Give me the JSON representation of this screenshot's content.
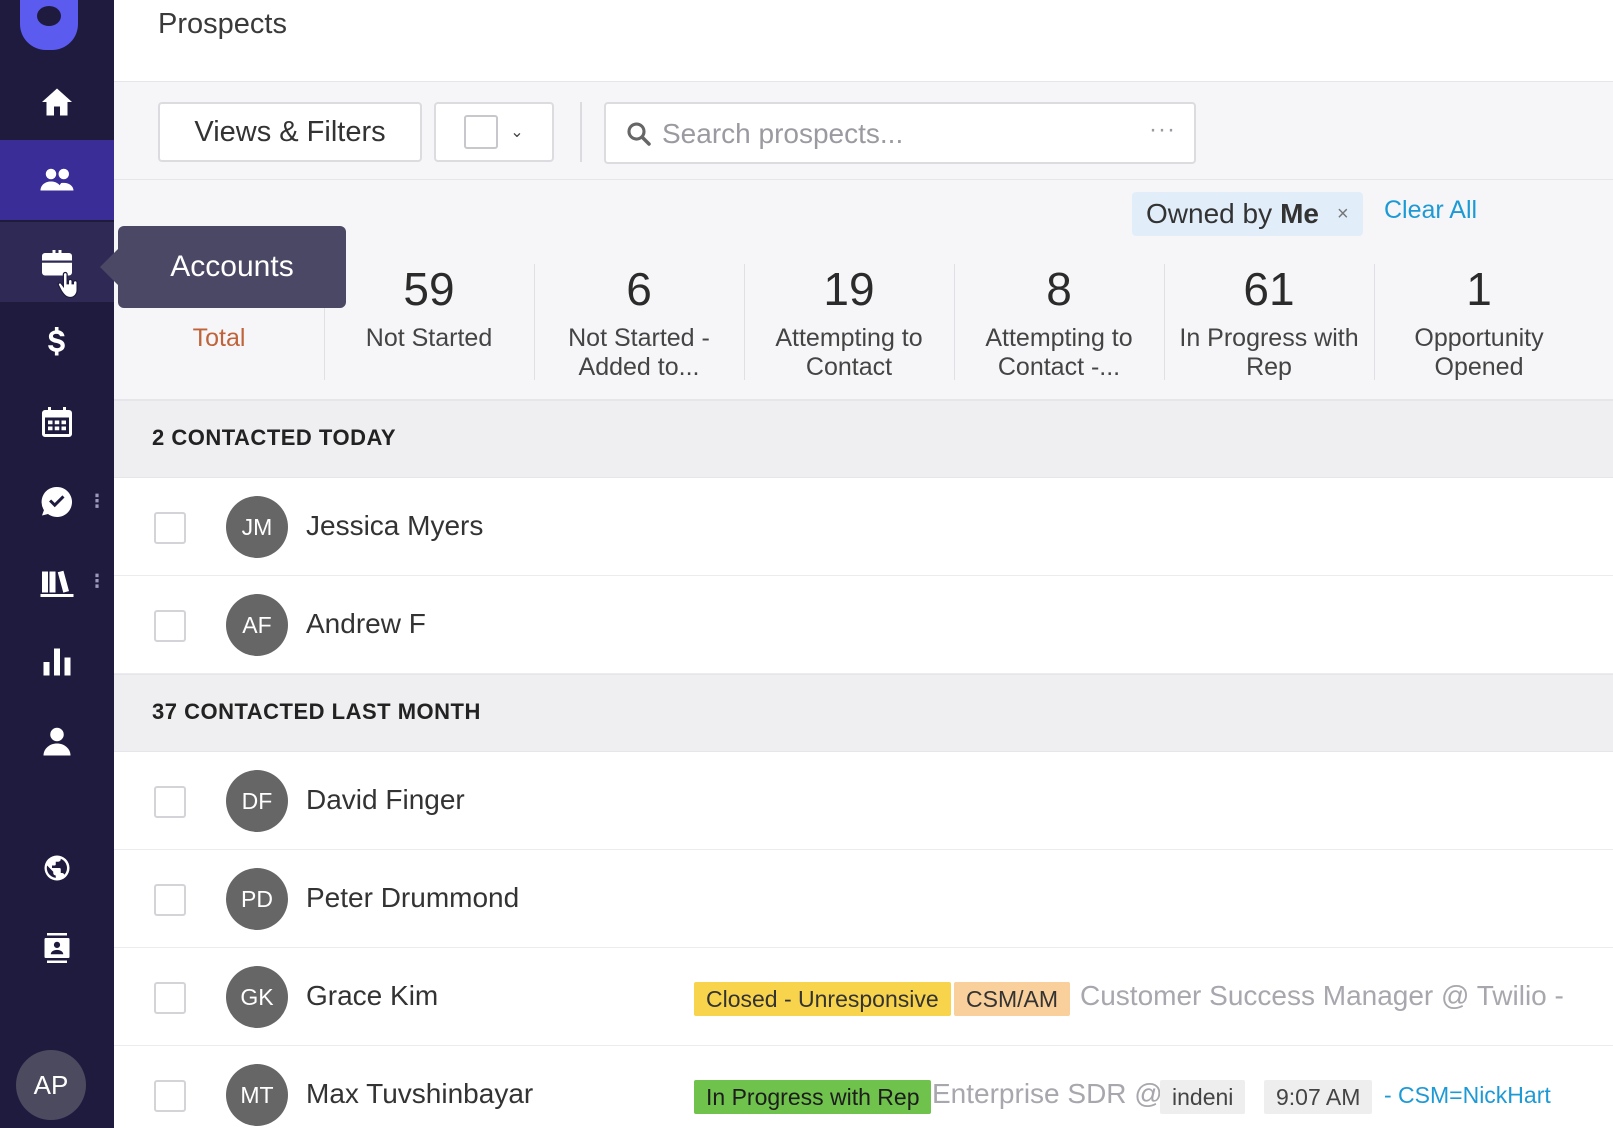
{
  "sidebar": {
    "items": [
      {
        "name": "home",
        "icon": "home-icon"
      },
      {
        "name": "prospects",
        "icon": "people-icon"
      },
      {
        "name": "accounts",
        "icon": "briefcase-icon"
      },
      {
        "name": "opportunities",
        "icon": "dollar-icon"
      },
      {
        "name": "calendar",
        "icon": "calendar-icon"
      },
      {
        "name": "tasks",
        "icon": "check-circle-icon"
      },
      {
        "name": "library",
        "icon": "books-icon"
      },
      {
        "name": "reports",
        "icon": "bar-chart-icon"
      },
      {
        "name": "users",
        "icon": "person-icon"
      },
      {
        "name": "globe",
        "icon": "globe-icon"
      },
      {
        "name": "contacts",
        "icon": "contact-card-icon"
      }
    ],
    "user_initials": "AP",
    "colors": {
      "background": "#1e1b3f",
      "active": "#3a2d97",
      "logo": "#5b5bf0"
    }
  },
  "tooltip": {
    "label": "Accounts"
  },
  "header": {
    "title": "Prospects"
  },
  "toolbar": {
    "views_filters_label": "Views & Filters",
    "search_placeholder": "Search prospects...",
    "search_more": "···"
  },
  "filters": {
    "chip_prefix": "Owned by",
    "chip_value": "Me",
    "chip_close": "×",
    "clear_all": "Clear All"
  },
  "stats": [
    {
      "count": "",
      "label": "Total"
    },
    {
      "count": "59",
      "label": "Not Started"
    },
    {
      "count": "6",
      "label": "Not Started - Added to..."
    },
    {
      "count": "19",
      "label": "Attempting to Contact"
    },
    {
      "count": "8",
      "label": "Attempting to Contact -..."
    },
    {
      "count": "61",
      "label": "In Progress with Rep"
    },
    {
      "count": "1",
      "label": "Opportunity Opened"
    }
  ],
  "groups": [
    {
      "title": "2 CONTACTED TODAY",
      "rows": [
        {
          "initials": "JM",
          "name": "Jessica Myers"
        },
        {
          "initials": "AF",
          "name": "Andrew F"
        }
      ]
    },
    {
      "title": "37 CONTACTED LAST MONTH",
      "rows": [
        {
          "initials": "DF",
          "name": "David Finger"
        },
        {
          "initials": "PD",
          "name": "Peter Drummond"
        },
        {
          "initials": "GK",
          "name": "Grace Kim",
          "stage": "Closed - Unresponsive",
          "persona": "CSM/AM",
          "title": "Customer Success Manager @ Twilio -"
        },
        {
          "initials": "MT",
          "name": "Max Tuvshinbayar",
          "stage": "In Progress with Rep",
          "title_prefix": "Enterprise SDR @",
          "company": "indeni",
          "time": "9:07 AM",
          "owner": "- CSM=NickHart"
        }
      ]
    }
  ],
  "colors": {
    "link": "#1d9ad6",
    "total_label": "#c0633b",
    "tag_yellow": "#f8d44c",
    "tag_peach": "#f9cf9c",
    "tag_green": "#6fc24b"
  }
}
